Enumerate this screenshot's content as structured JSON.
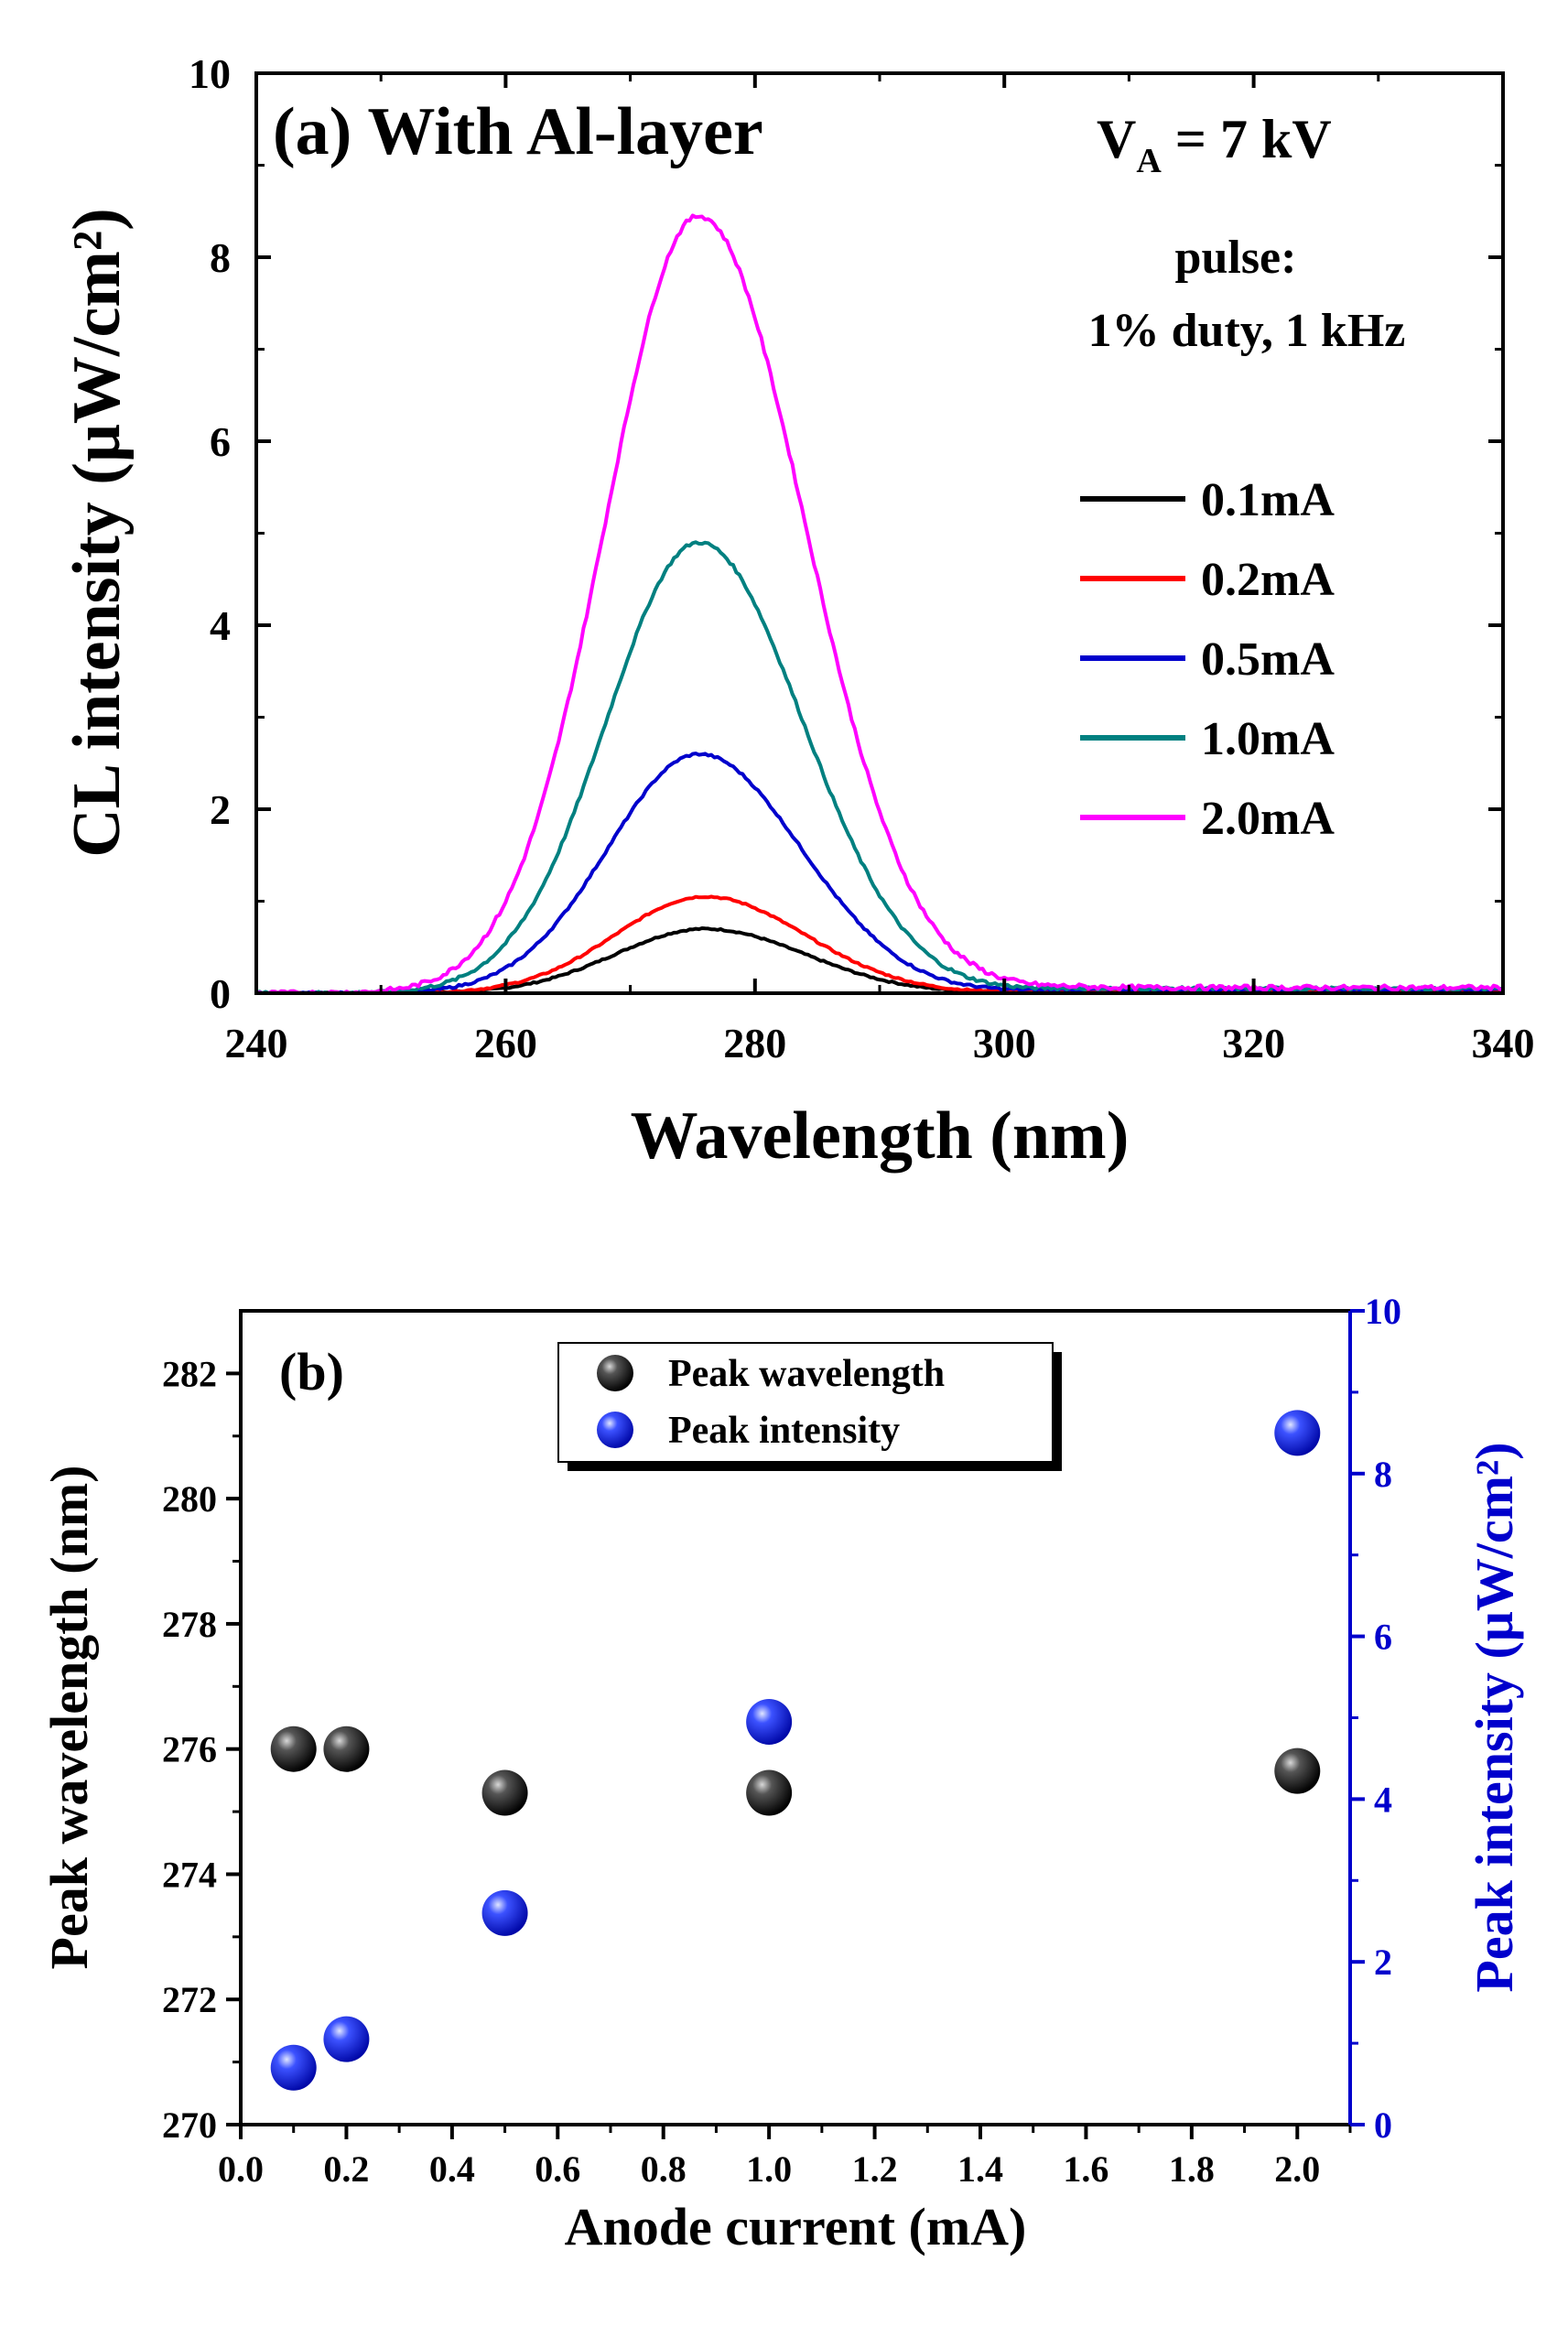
{
  "chart_data": [
    {
      "type": "line",
      "panel": "(a)",
      "title": "(a) With Al-layer",
      "xlabel": "Wavelength (nm)",
      "ylabel": "CL intensity (μW/cm²)",
      "xlim": [
        240,
        340
      ],
      "ylim": [
        0,
        10
      ],
      "xticks": [
        240,
        260,
        280,
        300,
        320,
        340
      ],
      "yticks": [
        0,
        2,
        4,
        6,
        8,
        10
      ],
      "annotations": {
        "voltage_prefix": "V",
        "voltage_sub": "A",
        "voltage_value": " = 7 kV",
        "pulse_line1": "pulse:",
        "pulse_line2": "1% duty, 1 kHz"
      },
      "legend_position": "center-right",
      "series": [
        {
          "name": "0.1mA",
          "color": "#000000",
          "peak_wavelength": 276,
          "peak_intensity": 0.7,
          "sigma_left": 7.2,
          "sigma_right": 8.0,
          "baseline": 0.02
        },
        {
          "name": "0.2mA",
          "color": "#ff0000",
          "peak_wavelength": 276,
          "peak_intensity": 1.05,
          "sigma_left": 7.2,
          "sigma_right": 8.0,
          "baseline": 0.03
        },
        {
          "name": "0.5mA",
          "color": "#0000cc",
          "peak_wavelength": 275.5,
          "peak_intensity": 2.6,
          "sigma_left": 7.3,
          "sigma_right": 8.2,
          "baseline": 0.04
        },
        {
          "name": "1.0mA",
          "color": "#008080",
          "peak_wavelength": 275.5,
          "peak_intensity": 4.9,
          "sigma_left": 7.4,
          "sigma_right": 8.3,
          "baseline": 0.05
        },
        {
          "name": "2.0mA",
          "color": "#ff00ff",
          "peak_wavelength": 275.5,
          "peak_intensity": 8.45,
          "sigma_left": 7.5,
          "sigma_right": 8.5,
          "baseline": 0.06
        }
      ]
    },
    {
      "type": "scatter",
      "panel": "(b)",
      "title": "(b)",
      "xlabel": "Anode current (mA)",
      "ylabel_left": "Peak wavelength (nm)",
      "ylabel_right": "Peak intensity (μW/cm²)",
      "xlim": [
        0.0,
        2.1
      ],
      "ylim_left": [
        270,
        283
      ],
      "ylim_right": [
        0,
        10
      ],
      "xticks": [
        "0.0",
        "0.2",
        "0.4",
        "0.6",
        "0.8",
        "1.0",
        "1.2",
        "1.4",
        "1.6",
        "1.8",
        "2.0"
      ],
      "yticks_left": [
        270,
        272,
        274,
        276,
        278,
        280,
        282
      ],
      "yticks_right": [
        0,
        2,
        4,
        6,
        8,
        10
      ],
      "right_axis_color": "#0000cc",
      "legend_position": "top-center",
      "series": [
        {
          "name": "Peak wavelength",
          "axis": "left",
          "color": "#000000",
          "x": [
            0.1,
            0.2,
            0.5,
            1.0,
            2.0
          ],
          "y": [
            276.0,
            276.0,
            275.3,
            275.3,
            275.65
          ]
        },
        {
          "name": "Peak intensity",
          "axis": "right",
          "color": "#0000ff",
          "x": [
            0.1,
            0.2,
            0.5,
            1.0,
            2.0
          ],
          "y": [
            0.7,
            1.05,
            2.6,
            4.95,
            8.5
          ]
        }
      ]
    }
  ]
}
